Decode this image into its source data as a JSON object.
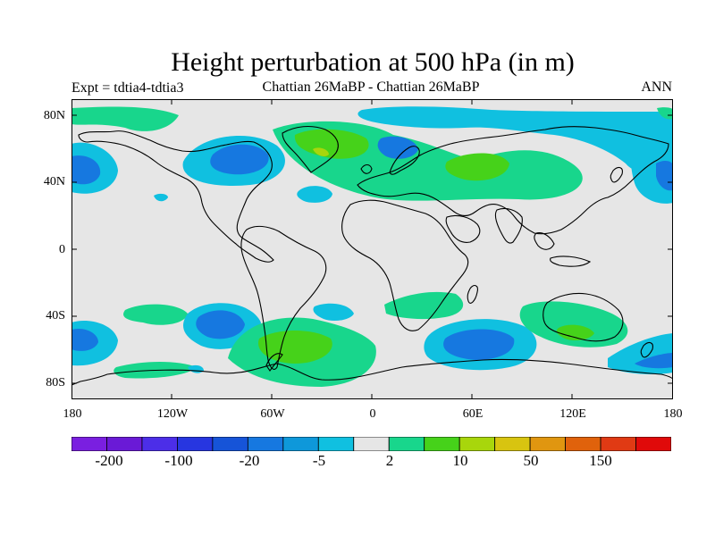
{
  "title": "Height perturbation at 500 hPa (in m)",
  "experiment_label": "Expt = tdtia4-tdtia3",
  "subtitle": "Chattian  26MaBP - Chattian  26MaBP",
  "season": "ANN",
  "lat_ticks": [
    "80N",
    "40N",
    "0",
    "40S",
    "80S"
  ],
  "lon_ticks": [
    "180",
    "120W",
    "60W",
    "0",
    "60E",
    "120E",
    "180"
  ],
  "colorbar": {
    "colors": [
      "#7a1fe0",
      "#6a1ad6",
      "#4c2ee8",
      "#2736e0",
      "#1654d8",
      "#1678e0",
      "#0e98da",
      "#10c0e0",
      "#e6e6e6",
      "#18d68c",
      "#46d21a",
      "#a8d60c",
      "#d8c410",
      "#e09610",
      "#e0620c",
      "#e03a14",
      "#e00a0a"
    ],
    "labels": [
      "-200",
      "-100",
      "-20",
      "-5",
      "2",
      "10",
      "50",
      "150"
    ]
  },
  "chart_data": {
    "type": "filled-contour-map",
    "variable": "500 hPa height perturbation",
    "units": "m",
    "projection": "cylindrical equidistant",
    "lon_range": [
      -180,
      180
    ],
    "lat_range": [
      -90,
      90
    ],
    "contour_levels": [
      -200,
      -100,
      -50,
      -20,
      -10,
      -5,
      -2,
      2,
      5,
      10,
      20,
      50,
      100,
      150,
      200
    ],
    "colorbar_labels": [
      -200,
      -100,
      -20,
      -5,
      2,
      10,
      50,
      150
    ]
  }
}
